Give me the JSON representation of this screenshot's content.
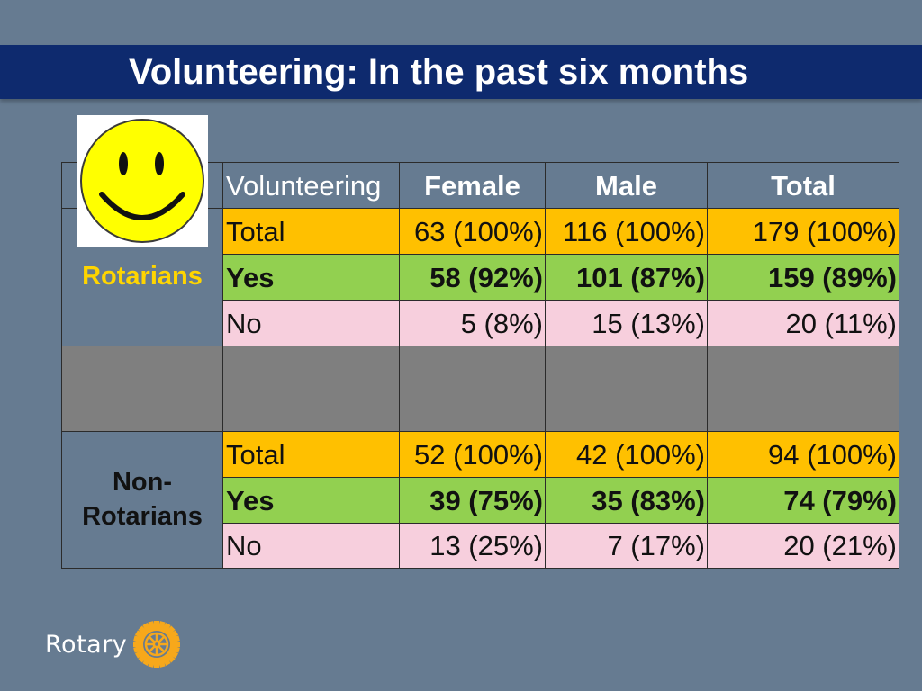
{
  "title": "Volunteering: In the past six months",
  "header": {
    "corner": "Volunteering",
    "female": "Female",
    "male": "Male",
    "total": "Total"
  },
  "rotarians": {
    "label": "Rotarians",
    "rows": [
      {
        "label": "Total",
        "female": "63 (100%)",
        "male": "116 (100%)",
        "total": "179 (100%)"
      },
      {
        "label": "Yes",
        "female": "58 (92%)",
        "male": "101 (87%)",
        "total": "159 (89%)"
      },
      {
        "label": "No",
        "female": "5 (8%)",
        "male": "15 (13%)",
        "total": "20 (11%)"
      }
    ]
  },
  "non_rotarians": {
    "label_line1": "Non-",
    "label_line2": "Rotarians",
    "rows": [
      {
        "label": "Total",
        "female": "52 (100%)",
        "male": "42 (100%)",
        "total": "94 (100%)"
      },
      {
        "label": "Yes",
        "female": "39 (75%)",
        "male": "35 (83%)",
        "total": "74 (79%)"
      },
      {
        "label": "No",
        "female": "13 (25%)",
        "male": "7 (17%)",
        "total": "20 (21%)"
      }
    ]
  },
  "logo": {
    "text": "Rotary",
    "icon": "rotary-wheel-icon",
    "color": "#f7a81b"
  },
  "colors": {
    "title_bar": "#0e2a6e",
    "total_row": "#ffc000",
    "yes_row": "#92d050",
    "no_row": "#f7cfdd",
    "spacer_row": "#7f7f7f",
    "rotarians_label": "#ffd500"
  }
}
